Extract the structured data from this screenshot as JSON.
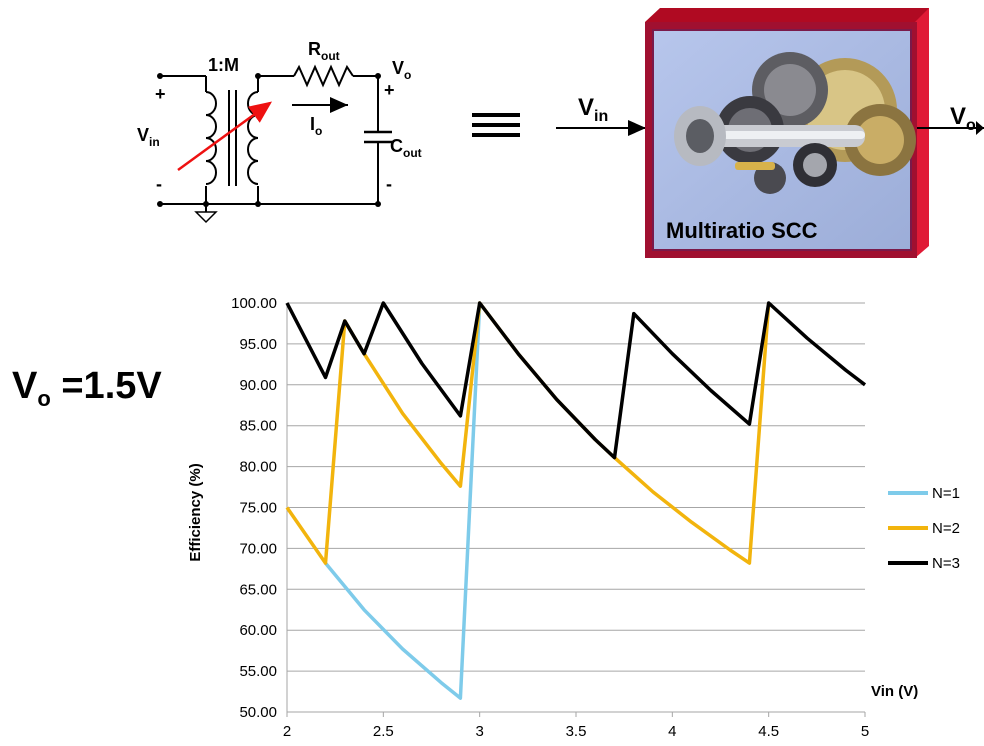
{
  "circuit": {
    "ratio": "1:M",
    "rout_main": "R",
    "rout_sub": "out",
    "vo_main": "V",
    "vo_sub": "o",
    "io_main": "I",
    "io_sub": "o",
    "vin_main": "V",
    "vin_sub": "in",
    "cout_main": "C",
    "cout_sub": "out",
    "plus": "+",
    "minus": "-"
  },
  "equivalence": {
    "symbol": "≡"
  },
  "block": {
    "vin_main": "V",
    "vin_sub": "in",
    "vout_main": "V",
    "vout_sub": "o",
    "label": "Multiratio SCC",
    "image_icon": "gearbox-icon",
    "frame_color": "#c8102e",
    "inner_color": "#a9b8e0"
  },
  "vo_label": {
    "main": "V",
    "sub": "o",
    "rest": " =1.5V"
  },
  "chart_data": {
    "type": "line",
    "xlabel": "Vin (V)",
    "ylabel": "Efficiency (%)",
    "xlim": [
      2,
      5
    ],
    "ylim": [
      50,
      100
    ],
    "x_ticks": [
      "2",
      "2.5",
      "3",
      "3.5",
      "4",
      "4.5",
      "5"
    ],
    "y_ticks": [
      "50.00",
      "55.00",
      "60.00",
      "65.00",
      "70.00",
      "75.00",
      "80.00",
      "85.00",
      "90.00",
      "95.00",
      "100.00"
    ],
    "grid": "horizontal",
    "legend_position": "right",
    "series": [
      {
        "name": "N=1",
        "color": "#7ecbea",
        "points": [
          [
            2.2,
            68.2
          ],
          [
            2.4,
            62.5
          ],
          [
            2.6,
            57.7
          ],
          [
            2.8,
            53.6
          ],
          [
            2.9,
            51.7
          ],
          [
            3.0,
            100
          ]
        ]
      },
      {
        "name": "N=2",
        "color": "#f2b40d",
        "points": [
          [
            2.0,
            75.0
          ],
          [
            2.2,
            68.2
          ],
          [
            2.3,
            97.8
          ],
          [
            2.4,
            93.8
          ],
          [
            2.6,
            86.5
          ],
          [
            2.8,
            80.4
          ],
          [
            2.9,
            77.6
          ],
          [
            3.0,
            100
          ],
          [
            3.2,
            93.8
          ],
          [
            3.4,
            88.2
          ],
          [
            3.6,
            83.3
          ],
          [
            3.7,
            81.1
          ],
          [
            3.9,
            76.9
          ],
          [
            4.1,
            73.2
          ],
          [
            4.3,
            69.8
          ],
          [
            4.4,
            68.2
          ],
          [
            4.5,
            100
          ]
        ]
      },
      {
        "name": "N=3",
        "color": "#000000",
        "points": [
          [
            2.0,
            100
          ],
          [
            2.2,
            90.9
          ],
          [
            2.3,
            97.8
          ],
          [
            2.4,
            93.8
          ],
          [
            2.5,
            100
          ],
          [
            2.7,
            92.6
          ],
          [
            2.9,
            86.2
          ],
          [
            3.0,
            100
          ],
          [
            3.2,
            93.8
          ],
          [
            3.4,
            88.2
          ],
          [
            3.6,
            83.3
          ],
          [
            3.7,
            81.1
          ],
          [
            3.8,
            98.7
          ],
          [
            4.0,
            93.8
          ],
          [
            4.2,
            89.3
          ],
          [
            4.4,
            85.2
          ],
          [
            4.5,
            100
          ],
          [
            4.7,
            95.7
          ],
          [
            4.9,
            91.8
          ],
          [
            5.0,
            90.0
          ]
        ]
      }
    ]
  }
}
